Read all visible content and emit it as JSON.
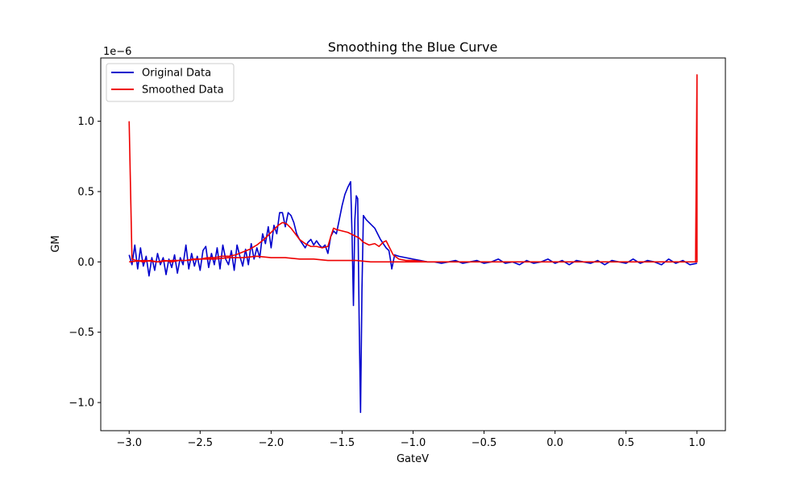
{
  "chart_data": {
    "type": "line",
    "title": "Smoothing the Blue Curve",
    "xlabel": "GateV",
    "ylabel": "GM",
    "y_scale_label": "1e−6",
    "xlim": [
      -3.2,
      1.2
    ],
    "ylim": [
      -1.2e-06,
      1.45e-06
    ],
    "x_ticks": [
      -3.0,
      -2.5,
      -2.0,
      -1.5,
      -1.0,
      -0.5,
      0.0,
      0.5,
      1.0
    ],
    "x_tick_labels": [
      "−3.0",
      "−2.5",
      "−2.0",
      "−1.5",
      "−1.0",
      "−0.5",
      "0.0",
      "0.5",
      "1.0"
    ],
    "y_ticks": [
      -1e-06,
      -5e-07,
      0.0,
      5e-07,
      1e-06
    ],
    "y_tick_labels": [
      "−1.0",
      "−0.5",
      "0.0",
      "0.5",
      "1.0"
    ],
    "grid": false,
    "legend_position": "top-left",
    "series": [
      {
        "name": "Original Data",
        "color": "#0000cc",
        "points": [
          [
            -3.0,
            5e-08
          ],
          [
            -2.98,
            -2e-08
          ],
          [
            -2.96,
            1.2e-07
          ],
          [
            -2.94,
            -5e-08
          ],
          [
            -2.92,
            1e-07
          ],
          [
            -2.9,
            -3e-08
          ],
          [
            -2.88,
            4e-08
          ],
          [
            -2.86,
            -1e-07
          ],
          [
            -2.84,
            3e-08
          ],
          [
            -2.82,
            -6e-08
          ],
          [
            -2.8,
            6e-08
          ],
          [
            -2.78,
            -2e-08
          ],
          [
            -2.76,
            3e-08
          ],
          [
            -2.74,
            -9e-08
          ],
          [
            -2.72,
            2e-08
          ],
          [
            -2.7,
            -4e-08
          ],
          [
            -2.68,
            5e-08
          ],
          [
            -2.66,
            -8e-08
          ],
          [
            -2.64,
            3e-08
          ],
          [
            -2.62,
            -2e-08
          ],
          [
            -2.6,
            1.2e-07
          ],
          [
            -2.58,
            -5e-08
          ],
          [
            -2.56,
            6e-08
          ],
          [
            -2.54,
            -3e-08
          ],
          [
            -2.52,
            4e-08
          ],
          [
            -2.5,
            -6e-08
          ],
          [
            -2.48,
            8e-08
          ],
          [
            -2.46,
            1.1e-07
          ],
          [
            -2.44,
            -4e-08
          ],
          [
            -2.42,
            6e-08
          ],
          [
            -2.4,
            -2e-08
          ],
          [
            -2.38,
            1e-07
          ],
          [
            -2.36,
            -5e-08
          ],
          [
            -2.34,
            1.2e-07
          ],
          [
            -2.32,
            2e-08
          ],
          [
            -2.3,
            -2e-08
          ],
          [
            -2.28,
            8e-08
          ],
          [
            -2.26,
            -6e-08
          ],
          [
            -2.24,
            1.2e-07
          ],
          [
            -2.22,
            4e-08
          ],
          [
            -2.2,
            -3e-08
          ],
          [
            -2.18,
            9e-08
          ],
          [
            -2.16,
            -2e-08
          ],
          [
            -2.14,
            1.3e-07
          ],
          [
            -2.12,
            2e-08
          ],
          [
            -2.1,
            1e-07
          ],
          [
            -2.08,
            3e-08
          ],
          [
            -2.06,
            2e-07
          ],
          [
            -2.04,
            1.3e-07
          ],
          [
            -2.02,
            2.5e-07
          ],
          [
            -2.0,
            1e-07
          ],
          [
            -1.98,
            2.6e-07
          ],
          [
            -1.96,
            2e-07
          ],
          [
            -1.94,
            3.5e-07
          ],
          [
            -1.92,
            3.5e-07
          ],
          [
            -1.9,
            2.5e-07
          ],
          [
            -1.88,
            3.5e-07
          ],
          [
            -1.86,
            3.3e-07
          ],
          [
            -1.84,
            2.8e-07
          ],
          [
            -1.82,
            2e-07
          ],
          [
            -1.8,
            1.6e-07
          ],
          [
            -1.78,
            1.3e-07
          ],
          [
            -1.76,
            1e-07
          ],
          [
            -1.74,
            1.4e-07
          ],
          [
            -1.72,
            1.6e-07
          ],
          [
            -1.7,
            1.2e-07
          ],
          [
            -1.68,
            1.5e-07
          ],
          [
            -1.66,
            1.2e-07
          ],
          [
            -1.64,
            1e-07
          ],
          [
            -1.62,
            1.2e-07
          ],
          [
            -1.6,
            6e-08
          ],
          [
            -1.58,
            1.8e-07
          ],
          [
            -1.56,
            2.2e-07
          ],
          [
            -1.54,
            2e-07
          ],
          [
            -1.52,
            3e-07
          ],
          [
            -1.5,
            4e-07
          ],
          [
            -1.48,
            4.8e-07
          ],
          [
            -1.46,
            5.3e-07
          ],
          [
            -1.44,
            5.7e-07
          ],
          [
            -1.43,
            2e-07
          ],
          [
            -1.42,
            -3.1e-07
          ],
          [
            -1.41,
            3e-07
          ],
          [
            -1.4,
            4.7e-07
          ],
          [
            -1.39,
            4.5e-07
          ],
          [
            -1.38,
            -4e-07
          ],
          [
            -1.37,
            -1.07e-06
          ],
          [
            -1.36,
            -2e-07
          ],
          [
            -1.35,
            3.3e-07
          ],
          [
            -1.33,
            3e-07
          ],
          [
            -1.31,
            2.8e-07
          ],
          [
            -1.29,
            2.6e-07
          ],
          [
            -1.27,
            2.4e-07
          ],
          [
            -1.25,
            2e-07
          ],
          [
            -1.23,
            1.6e-07
          ],
          [
            -1.21,
            1.3e-07
          ],
          [
            -1.19,
            1e-07
          ],
          [
            -1.17,
            8e-08
          ],
          [
            -1.16,
            2e-08
          ],
          [
            -1.15,
            -5e-08
          ],
          [
            -1.13,
            5e-08
          ],
          [
            -1.1,
            4e-08
          ],
          [
            -1.05,
            3e-08
          ],
          [
            -1.0,
            2e-08
          ],
          [
            -0.95,
            1e-08
          ],
          [
            -0.9,
            0.0
          ],
          [
            -0.85,
            0.0
          ],
          [
            -0.8,
            -1e-08
          ],
          [
            -0.75,
            0.0
          ],
          [
            -0.7,
            1e-08
          ],
          [
            -0.65,
            -1e-08
          ],
          [
            -0.6,
            0.0
          ],
          [
            -0.55,
            1e-08
          ],
          [
            -0.5,
            -1e-08
          ],
          [
            -0.45,
            0.0
          ],
          [
            -0.4,
            2e-08
          ],
          [
            -0.35,
            -1e-08
          ],
          [
            -0.3,
            0.0
          ],
          [
            -0.25,
            -2e-08
          ],
          [
            -0.2,
            1e-08
          ],
          [
            -0.15,
            -1e-08
          ],
          [
            -0.1,
            0.0
          ],
          [
            -0.05,
            2e-08
          ],
          [
            0.0,
            -1e-08
          ],
          [
            0.05,
            1e-08
          ],
          [
            0.1,
            -2e-08
          ],
          [
            0.15,
            1e-08
          ],
          [
            0.2,
            0.0
          ],
          [
            0.25,
            -1e-08
          ],
          [
            0.3,
            1e-08
          ],
          [
            0.35,
            -2e-08
          ],
          [
            0.4,
            1e-08
          ],
          [
            0.45,
            0.0
          ],
          [
            0.5,
            -1e-08
          ],
          [
            0.55,
            2e-08
          ],
          [
            0.6,
            -1e-08
          ],
          [
            0.65,
            1e-08
          ],
          [
            0.7,
            0.0
          ],
          [
            0.75,
            -2e-08
          ],
          [
            0.8,
            2e-08
          ],
          [
            0.85,
            -1e-08
          ],
          [
            0.9,
            1e-08
          ],
          [
            0.95,
            -2e-08
          ],
          [
            1.0,
            -1e-08
          ]
        ]
      },
      {
        "name": "Smoothed Data",
        "color": "#ee0000",
        "points": [
          [
            -3.0,
            1e-06
          ],
          [
            -2.98,
            2e-08
          ],
          [
            -2.95,
            1e-08
          ],
          [
            -2.9,
            0.0
          ],
          [
            -2.85,
            1e-08
          ],
          [
            -2.8,
            0.0
          ],
          [
            -2.75,
            1e-08
          ],
          [
            -2.7,
            0.0
          ],
          [
            -2.65,
            1e-08
          ],
          [
            -2.6,
            1e-08
          ],
          [
            -2.55,
            2e-08
          ],
          [
            -2.5,
            2e-08
          ],
          [
            -2.45,
            3e-08
          ],
          [
            -2.4,
            3e-08
          ],
          [
            -2.35,
            4e-08
          ],
          [
            -2.3,
            4e-08
          ],
          [
            -2.25,
            5e-08
          ],
          [
            -2.2,
            7e-08
          ],
          [
            -2.15,
            9e-08
          ],
          [
            -2.1,
            1.2e-07
          ],
          [
            -2.05,
            1.6e-07
          ],
          [
            -2.0,
            2.1e-07
          ],
          [
            -1.95,
            2.6e-07
          ],
          [
            -1.92,
            2.8e-07
          ],
          [
            -1.89,
            2.7e-07
          ],
          [
            -1.86,
            2.4e-07
          ],
          [
            -1.83,
            2e-07
          ],
          [
            -1.8,
            1.6e-07
          ],
          [
            -1.76,
            1.3e-07
          ],
          [
            -1.72,
            1.1e-07
          ],
          [
            -1.68,
            1.1e-07
          ],
          [
            -1.64,
            1e-07
          ],
          [
            -1.6,
            1.1e-07
          ],
          [
            -1.58,
            1.8e-07
          ],
          [
            -1.56,
            2.4e-07
          ],
          [
            -1.54,
            2.3e-07
          ],
          [
            -1.5,
            2.2e-07
          ],
          [
            -1.46,
            2.1e-07
          ],
          [
            -1.42,
            1.9e-07
          ],
          [
            -1.38,
            1.7e-07
          ],
          [
            -1.35,
            1.4e-07
          ],
          [
            -1.31,
            1.2e-07
          ],
          [
            -1.27,
            1.3e-07
          ],
          [
            -1.24,
            1.1e-07
          ],
          [
            -1.21,
            1.4e-07
          ],
          [
            -1.19,
            1.5e-07
          ],
          [
            -1.17,
            1.1e-07
          ],
          [
            -1.14,
            5e-08
          ],
          [
            -1.1,
            2e-08
          ],
          [
            -1.05,
            1e-08
          ],
          [
            -1.0,
            1e-08
          ],
          [
            -0.9,
            0.0
          ],
          [
            -0.8,
            0.0
          ],
          [
            -0.7,
            0.0
          ],
          [
            -0.6,
            0.0
          ],
          [
            -0.5,
            0.0
          ],
          [
            -0.4,
            0.0
          ],
          [
            -0.3,
            0.0
          ],
          [
            -0.2,
            0.0
          ],
          [
            -0.1,
            0.0
          ],
          [
            0.0,
            0.0
          ],
          [
            0.1,
            0.0
          ],
          [
            0.2,
            0.0
          ],
          [
            0.3,
            0.0
          ],
          [
            0.4,
            0.0
          ],
          [
            0.5,
            0.0
          ],
          [
            0.6,
            0.0
          ],
          [
            0.7,
            0.0
          ],
          [
            0.8,
            0.0
          ],
          [
            0.9,
            0.0
          ],
          [
            0.97,
            0.0
          ],
          [
            0.99,
            0.0
          ],
          [
            1.0,
            1.33e-06
          ],
          [
            1.0,
            0.0
          ],
          [
            0.98,
            0.0
          ],
          [
            0.9,
            0.0
          ],
          [
            0.8,
            0.0
          ],
          [
            0.7,
            0.0
          ],
          [
            0.6,
            0.0
          ],
          [
            0.5,
            0.0
          ],
          [
            0.4,
            0.0
          ],
          [
            0.3,
            0.0
          ],
          [
            0.2,
            0.0
          ],
          [
            0.1,
            0.0
          ],
          [
            0.0,
            0.0
          ],
          [
            -0.1,
            0.0
          ],
          [
            -0.2,
            0.0
          ],
          [
            -0.3,
            0.0
          ],
          [
            -0.4,
            0.0
          ],
          [
            -0.5,
            0.0
          ],
          [
            -0.6,
            0.0
          ],
          [
            -0.7,
            0.0
          ],
          [
            -0.8,
            0.0
          ],
          [
            -0.9,
            0.0
          ],
          [
            -1.0,
            0.0
          ],
          [
            -1.1,
            0.0
          ],
          [
            -1.2,
            0.0
          ],
          [
            -1.3,
            0.0
          ],
          [
            -1.4,
            1e-08
          ],
          [
            -1.5,
            1e-08
          ],
          [
            -1.6,
            1e-08
          ],
          [
            -1.7,
            2e-08
          ],
          [
            -1.8,
            2e-08
          ],
          [
            -1.9,
            3e-08
          ],
          [
            -2.0,
            3e-08
          ],
          [
            -2.1,
            4e-08
          ],
          [
            -2.2,
            3e-08
          ],
          [
            -2.3,
            3e-08
          ],
          [
            -2.4,
            2e-08
          ],
          [
            -2.5,
            2e-08
          ],
          [
            -2.6,
            1e-08
          ],
          [
            -2.7,
            1e-08
          ],
          [
            -2.8,
            0.0
          ],
          [
            -2.9,
            1e-08
          ],
          [
            -3.0,
            0.0
          ]
        ]
      }
    ]
  }
}
